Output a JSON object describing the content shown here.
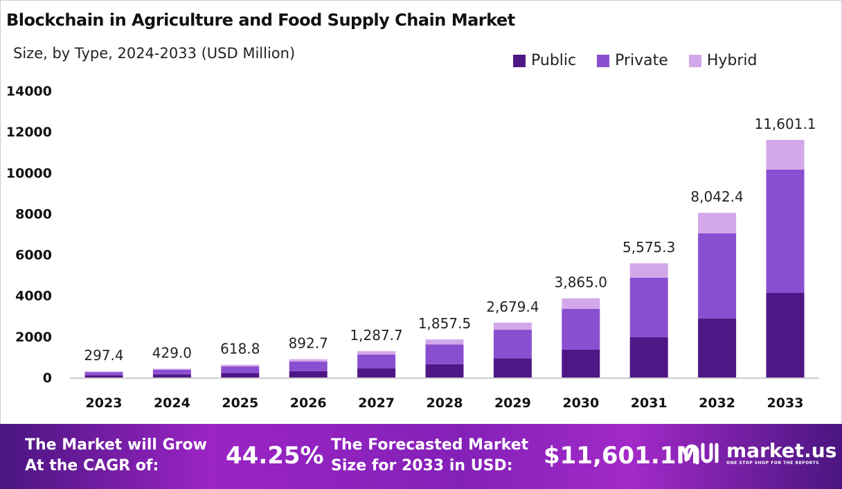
{
  "chart_data": {
    "type": "bar",
    "stacked": true,
    "title": "Blockchain in Agriculture and Food Supply Chain Market",
    "subtitle": "Size, by Type, 2024-2033 (USD Million)",
    "categories": [
      "2023",
      "2024",
      "2025",
      "2026",
      "2027",
      "2028",
      "2029",
      "2030",
      "2031",
      "2032",
      "2033"
    ],
    "series": [
      {
        "name": "Public",
        "color": "#4f1785",
        "values": [
          104,
          150,
          217,
          312,
          451,
          650,
          938,
          1353,
          1961,
          2874,
          4126
        ]
      },
      {
        "name": "Private",
        "color": "#8a4fd0",
        "values": [
          155,
          223,
          322,
          464,
          670,
          966,
          1393,
          1995,
          2909,
          4160,
          6019
        ]
      },
      {
        "name": "Hybrid",
        "color": "#d3a8ea",
        "values": [
          38,
          56,
          80,
          116,
          167,
          241,
          348,
          517,
          705,
          1008,
          1456
        ]
      }
    ],
    "totals_labels": [
      "297.4",
      "429.0",
      "618.8",
      "892.7",
      "1,287.7",
      "1,857.5",
      "2,679.4",
      "3,865.0",
      "5,575.3",
      "8,042.4",
      "11,601.1"
    ],
    "totals": [
      297.4,
      429.0,
      618.8,
      892.7,
      1287.7,
      1857.5,
      2679.4,
      3865.0,
      5575.3,
      8042.4,
      11601.1
    ],
    "yticks": [
      "0",
      "2000",
      "4000",
      "6000",
      "8000",
      "10000",
      "12000",
      "14000"
    ],
    "ylim": [
      0,
      14000
    ],
    "grid": false,
    "legend": "top-right"
  },
  "footer": {
    "cagr_label_1": "The Market will Grow",
    "cagr_label_2": "At the CAGR of:",
    "cagr_value": "44.25%",
    "forecast_label_1": "The Forecasted Market",
    "forecast_label_2": "Size for 2033 in USD:",
    "forecast_value": "$11,601.1M",
    "logo_text": "market.us",
    "logo_tagline": "ONE STOP SHOP FOR THE REPORTS"
  }
}
